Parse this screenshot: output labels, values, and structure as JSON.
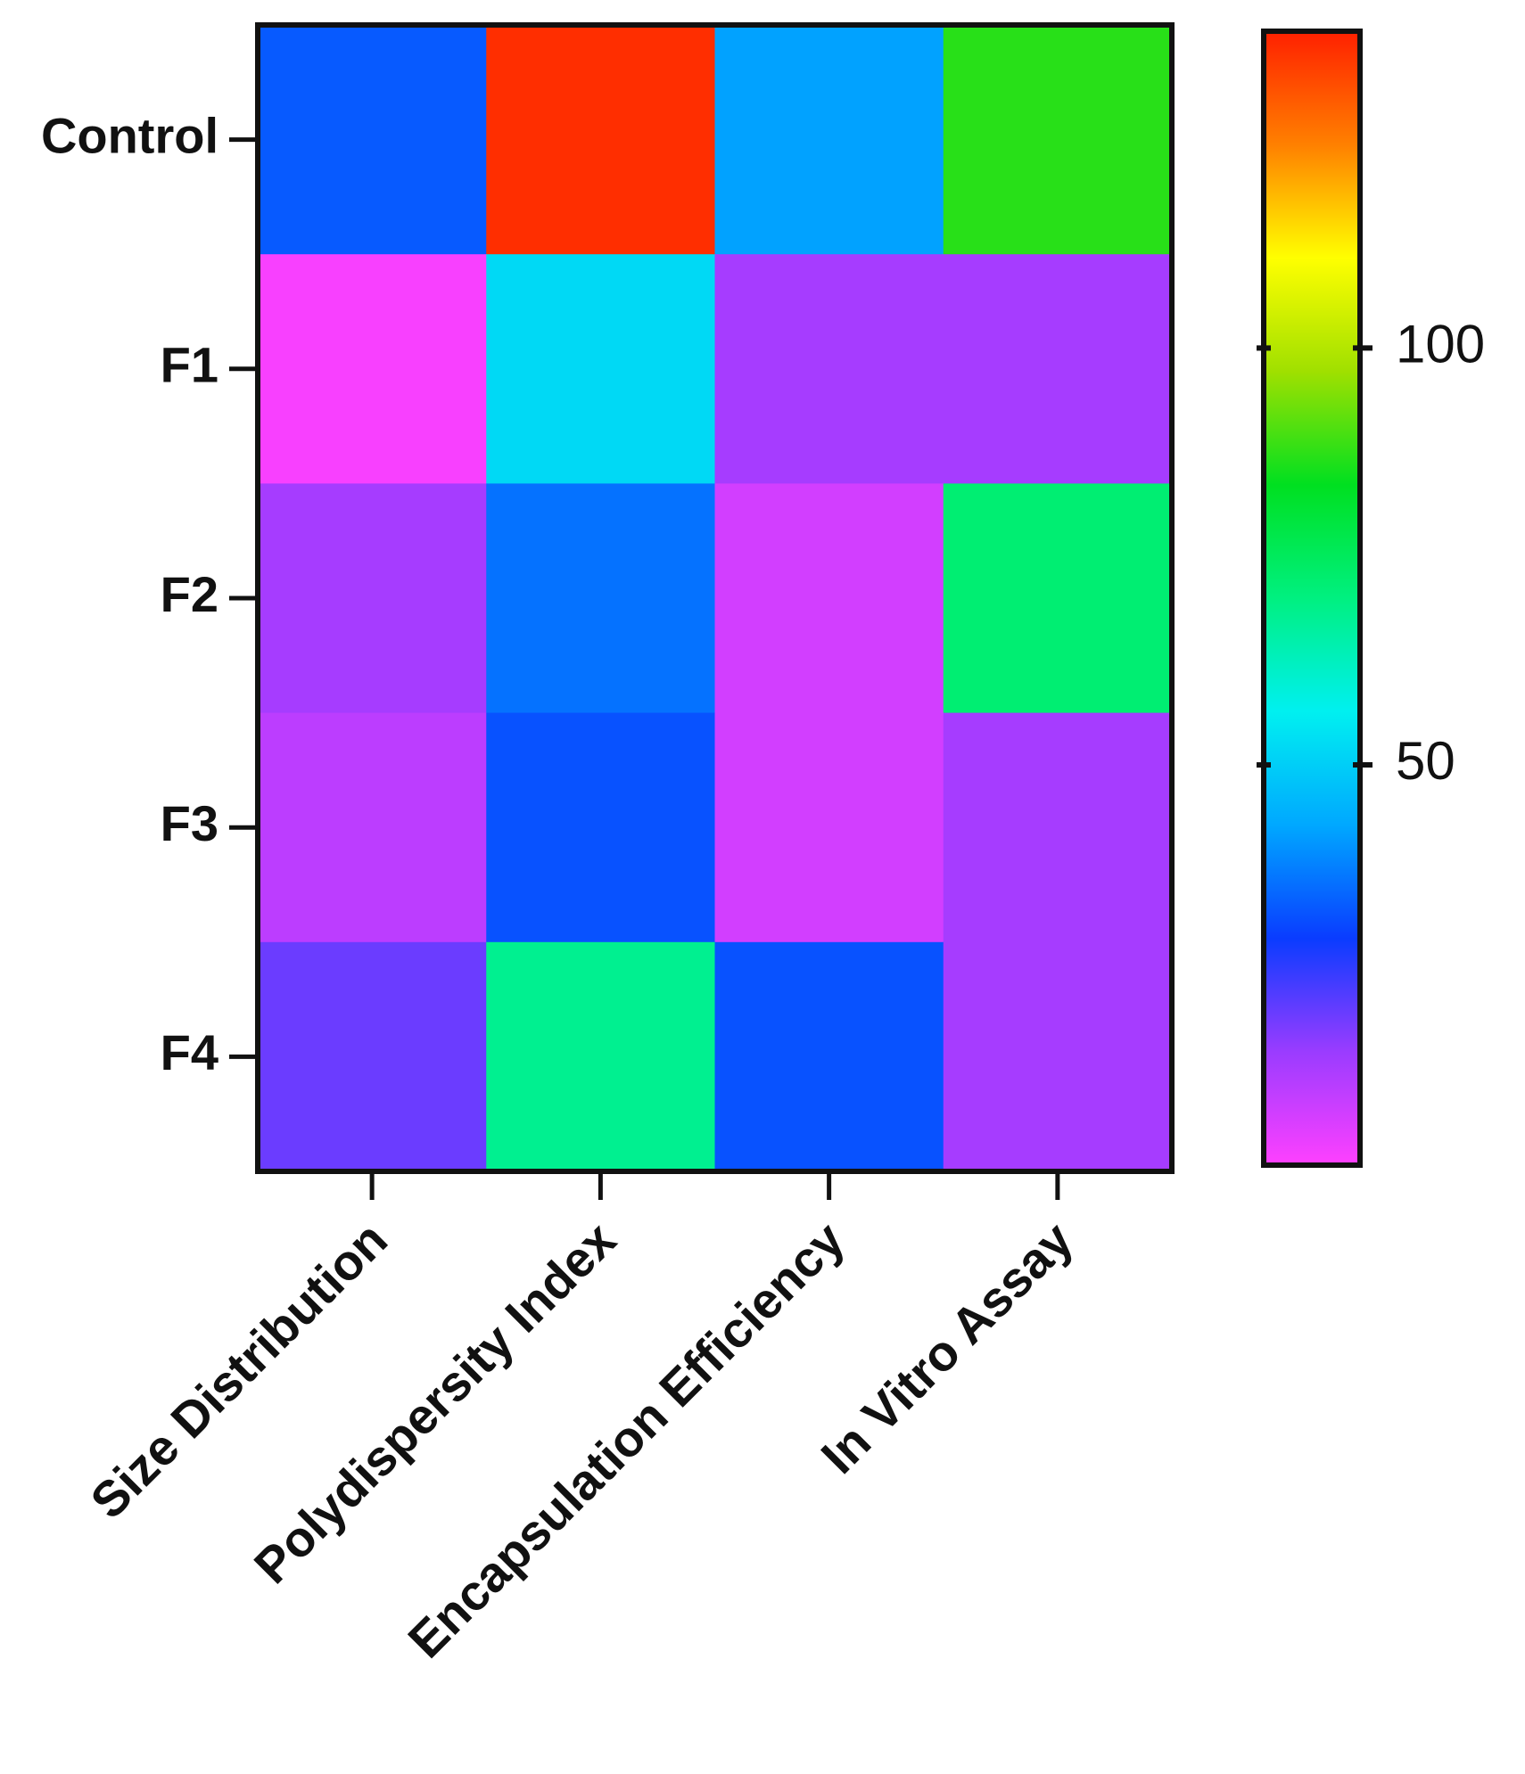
{
  "chart_data": {
    "type": "heatmap",
    "rows": [
      "Control",
      "F1",
      "F2",
      "F3",
      "F4"
    ],
    "columns": [
      "Size Distribution",
      "Polydispersity Index",
      "Encapsulation Efficiency",
      "In Vitro Assay"
    ],
    "values": [
      [
        33,
        136,
        42,
        87
      ],
      [
        3,
        52,
        14,
        14
      ],
      [
        14,
        36,
        8,
        72
      ],
      [
        11,
        32,
        8,
        14
      ],
      [
        20,
        68,
        32,
        14
      ]
    ],
    "zlim": [
      2,
      138
    ],
    "zticks": [
      50,
      100
    ],
    "colorscale": [
      "#ff40ff",
      "#9a3cff",
      "#0a3cff",
      "#00a8ff",
      "#00f0f0",
      "#00f080",
      "#00e020",
      "#a0e000",
      "#ffff00",
      "#ff8000",
      "#ff2000"
    ]
  }
}
